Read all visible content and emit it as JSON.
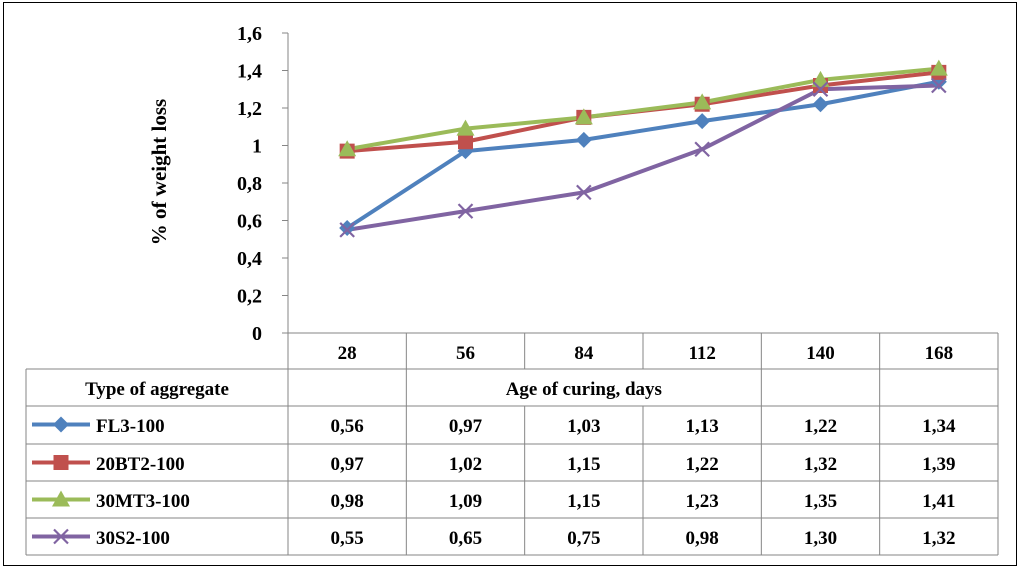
{
  "chart_data": {
    "type": "line",
    "ylabel": "% of weight loss",
    "ylim": [
      0,
      1.6
    ],
    "y_ticks": [
      "0",
      "0,2",
      "0,4",
      "0,6",
      "0,8",
      "1",
      "1,2",
      "1,4",
      "1,6"
    ],
    "categories": [
      "28",
      "56",
      "84",
      "112",
      "140",
      "168"
    ],
    "table_header_label": "Type of aggregate",
    "table_xlabel": "Age of curing, days",
    "series": [
      {
        "name": "FL3-100",
        "color": "#4F81BD",
        "marker": "diamond",
        "values": [
          0.56,
          0.97,
          1.03,
          1.13,
          1.22,
          1.34
        ],
        "labels": [
          "0,56",
          "0,97",
          "1,03",
          "1,13",
          "1,22",
          "1,34"
        ]
      },
      {
        "name": "20BT2-100",
        "color": "#C0504D",
        "marker": "square",
        "values": [
          0.97,
          1.02,
          1.15,
          1.22,
          1.32,
          1.39
        ],
        "labels": [
          "0,97",
          "1,02",
          "1,15",
          "1,22",
          "1,32",
          "1,39"
        ]
      },
      {
        "name": "30MT3-100",
        "color": "#9BBB59",
        "marker": "triangle",
        "values": [
          0.98,
          1.09,
          1.15,
          1.23,
          1.35,
          1.41
        ],
        "labels": [
          "0,98",
          "1,09",
          "1,15",
          "1,23",
          "1,35",
          "1,41"
        ]
      },
      {
        "name": "30S2-100",
        "color": "#8064A2",
        "marker": "x",
        "values": [
          0.55,
          0.65,
          0.75,
          0.98,
          1.3,
          1.32
        ],
        "labels": [
          "0,55",
          "0,65",
          "0,75",
          "0,98",
          "1,30",
          "1,32"
        ]
      }
    ]
  }
}
